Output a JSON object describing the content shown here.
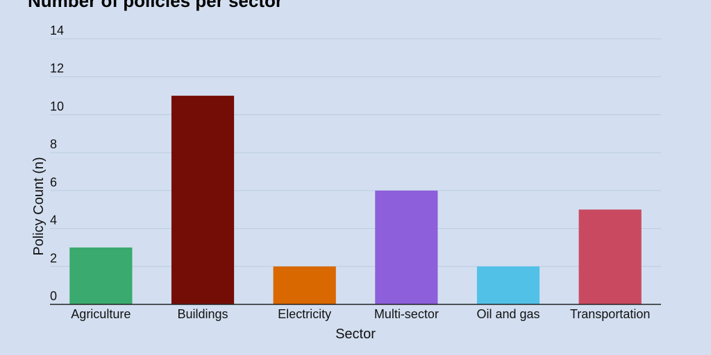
{
  "chart_data": {
    "type": "bar",
    "title": "Number of policies per sector",
    "xlabel": "Sector",
    "ylabel": "Policy Count (n)",
    "categories": [
      "Agriculture",
      "Buildings",
      "Electricity",
      "Multi-sector",
      "Oil and gas",
      "Transportation"
    ],
    "values": [
      3,
      11,
      2,
      6,
      2,
      5
    ],
    "colors": [
      "#3aaa6e",
      "#750d07",
      "#d96800",
      "#8d5fdb",
      "#52c1e8",
      "#c94a60"
    ],
    "ylim": [
      0,
      14
    ],
    "yticks": [
      0,
      2,
      4,
      6,
      8,
      10,
      12,
      14
    ],
    "grid": true,
    "background": "#d3dff0"
  }
}
